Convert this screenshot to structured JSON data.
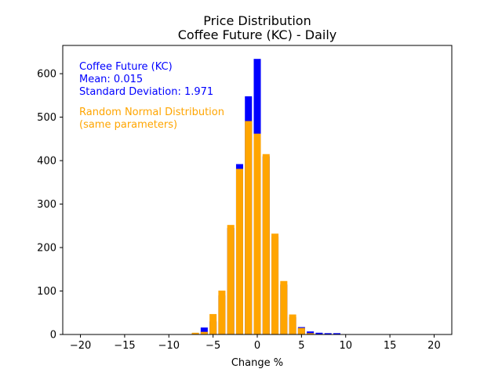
{
  "chart_data": {
    "type": "bar",
    "title": "Price Distribution",
    "subtitle": "Coffee Future (KC) - Daily",
    "xlabel": "Change %",
    "ylabel": "",
    "xlim": [
      -22,
      22
    ],
    "ylim": [
      0,
      665
    ],
    "xticks": [
      -20,
      -15,
      -10,
      -5,
      0,
      5,
      10,
      15,
      20
    ],
    "xtick_labels": [
      "−20",
      "−15",
      "−10",
      "−5",
      "0",
      "5",
      "10",
      "15",
      "20"
    ],
    "yticks": [
      0,
      100,
      200,
      300,
      400,
      500,
      600
    ],
    "ytick_labels": [
      "0",
      "100",
      "200",
      "300",
      "400",
      "500",
      "600"
    ],
    "grid": false,
    "series": [
      {
        "name": "Coffee Future (KC)",
        "color": "#0000ff",
        "x": [
          -7,
          -6,
          -5,
          -4,
          -3,
          -2,
          -1,
          0,
          1,
          2,
          3,
          4,
          5,
          6,
          7,
          8,
          9
        ],
        "values": [
          3,
          16,
          30,
          90,
          245,
          392,
          548,
          634,
          410,
          225,
          115,
          40,
          17,
          7,
          4,
          3,
          3
        ]
      },
      {
        "name": "Random Normal Distribution (same parameters)",
        "color": "#ffa500",
        "x": [
          -7,
          -6,
          -5,
          -4,
          -3,
          -2,
          -1,
          0,
          1,
          2,
          3,
          4,
          5,
          6,
          7,
          8,
          9
        ],
        "values": [
          4,
          6,
          47,
          101,
          252,
          381,
          491,
          462,
          415,
          232,
          123,
          46,
          15,
          3,
          1,
          0,
          0
        ]
      }
    ],
    "annotations": {
      "kc_name": "Coffee Future (KC)",
      "kc_mean": "Mean: 0.015",
      "kc_std": "Standard Deviation: 1.971",
      "normal_line1": "Random Normal Distribution",
      "normal_line2": "(same parameters)"
    }
  }
}
